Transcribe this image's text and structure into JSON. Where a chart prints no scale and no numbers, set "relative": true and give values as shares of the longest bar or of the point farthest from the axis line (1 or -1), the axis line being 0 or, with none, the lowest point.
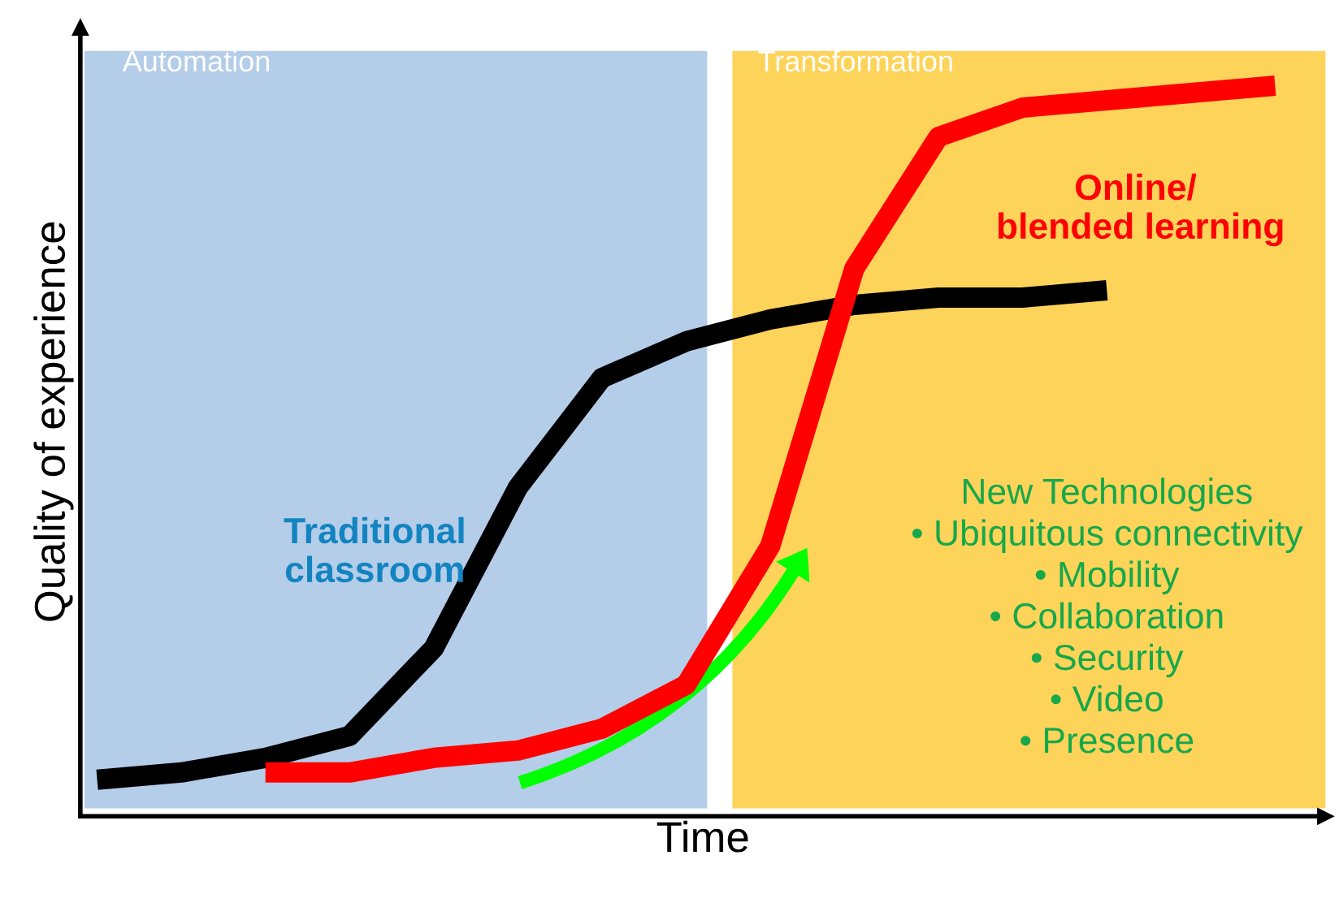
{
  "chart_data": {
    "type": "line",
    "relative": true,
    "xlabel": "Time",
    "ylabel": "Quality of experience",
    "categories": [
      null,
      null,
      null,
      null,
      null,
      null,
      null,
      null,
      null,
      null,
      null,
      null,
      null,
      null,
      null
    ],
    "series": [
      {
        "name": "Traditional classroom",
        "color": "#000000",
        "values": [
          0.05,
          0.06,
          0.08,
          0.11,
          0.23,
          0.45,
          0.6,
          0.65,
          0.68,
          0.7,
          0.71,
          0.71,
          0.72,
          null,
          null
        ]
      },
      {
        "name": "Online/ blended learning",
        "color": "#ff0000",
        "values": [
          null,
          null,
          0.06,
          0.06,
          0.08,
          0.09,
          0.12,
          0.18,
          0.37,
          0.75,
          0.93,
          0.97,
          0.98,
          0.99,
          1.0
        ]
      }
    ],
    "annotations": [
      "Automation",
      "Transformation",
      "New Technologies\n• Ubiquitous connectivity\n• Mobility\n• Collaboration\n• Security\n• Video\n• Presence"
    ],
    "grid": false,
    "legend": false,
    "tick_labels": false,
    "marker": "none",
    "line_style": "solid"
  }
}
